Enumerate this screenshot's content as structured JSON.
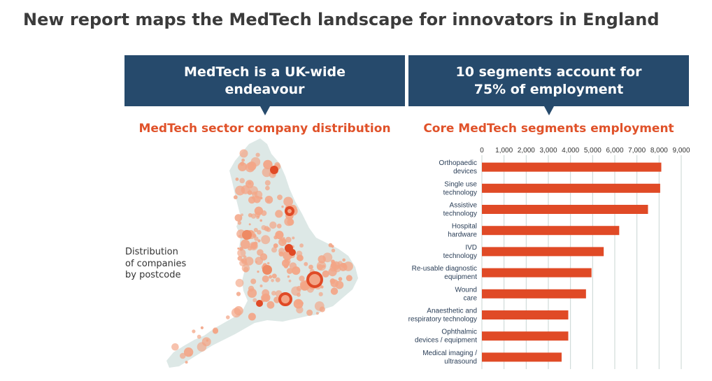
{
  "headline": "New report maps the MedTech landscape for innovators in England",
  "left_panel": {
    "banner_line1": "MedTech is a UK-wide",
    "banner_line2": "endeavour",
    "subtitle": "MedTech sector company distribution",
    "caption_line1": "Distribution",
    "caption_line2": "of companies",
    "caption_line3": "by postcode"
  },
  "right_panel": {
    "banner_line1": "10 segments account for",
    "banner_line2": "75% of employment",
    "subtitle": "Core MedTech segments employment"
  },
  "colors": {
    "banner": "#264a6c",
    "accent": "#e0522a",
    "bar": "#e04a26",
    "map_land": "#dde8e6",
    "map_dot": "#f3a586"
  },
  "chart_data": {
    "type": "bar",
    "orientation": "horizontal",
    "title": "Core MedTech segments employment",
    "categories": [
      [
        "Orthopaedic",
        "devices"
      ],
      [
        "Single use",
        "technology"
      ],
      [
        "Assistive",
        "technology"
      ],
      [
        "Hospital",
        "hardware"
      ],
      [
        "IVD",
        "technology"
      ],
      [
        "Re-usable diagnostic",
        "equipment"
      ],
      [
        "Wound",
        "care"
      ],
      [
        "Anaesthetic and",
        "respiratory technology"
      ],
      [
        "Ophthalmic",
        "devices / equipment"
      ],
      [
        "Medical imaging /",
        "ultrasound"
      ]
    ],
    "values": [
      8100,
      8050,
      7500,
      6200,
      5500,
      4950,
      4700,
      3900,
      3900,
      3600
    ],
    "xlim": [
      0,
      9000
    ],
    "xticks": [
      "0",
      "1,000",
      "2,000",
      "3,000",
      "4,000",
      "5,000",
      "6,000",
      "7,000",
      "8,000",
      "9,000"
    ],
    "tick_position": "top",
    "grid": true
  }
}
